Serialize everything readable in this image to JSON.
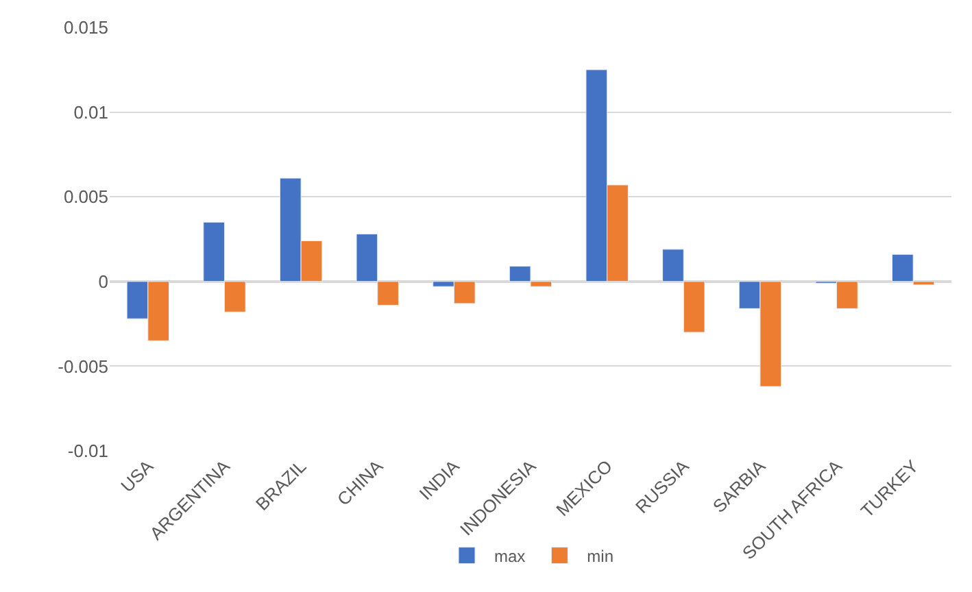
{
  "chart_data": {
    "type": "bar",
    "categories": [
      "USA",
      "ARGENTINA",
      "BRAZIL",
      "CHINA",
      "INDIA",
      "INDONESIA",
      "MEXICO",
      "RUSSIA",
      "SARBIA",
      "SOUTH AFRICA",
      "TURKEY"
    ],
    "series": [
      {
        "name": "max",
        "color": "#4472c4",
        "values": [
          -0.0022,
          0.0035,
          0.0061,
          0.0028,
          -0.0003,
          0.0009,
          0.0125,
          0.0019,
          -0.0016,
          -0.0001,
          0.0016
        ]
      },
      {
        "name": "min",
        "color": "#ed7d31",
        "values": [
          -0.0035,
          -0.0018,
          0.0024,
          -0.0014,
          -0.0013,
          -0.0003,
          0.0057,
          -0.003,
          -0.0062,
          -0.0016,
          -0.0002
        ]
      }
    ],
    "ylim": [
      -0.01,
      0.015
    ],
    "yticks": [
      -0.01,
      -0.005,
      0,
      0.005,
      0.01,
      0.015
    ],
    "grid": "y",
    "legend": "bottom"
  }
}
